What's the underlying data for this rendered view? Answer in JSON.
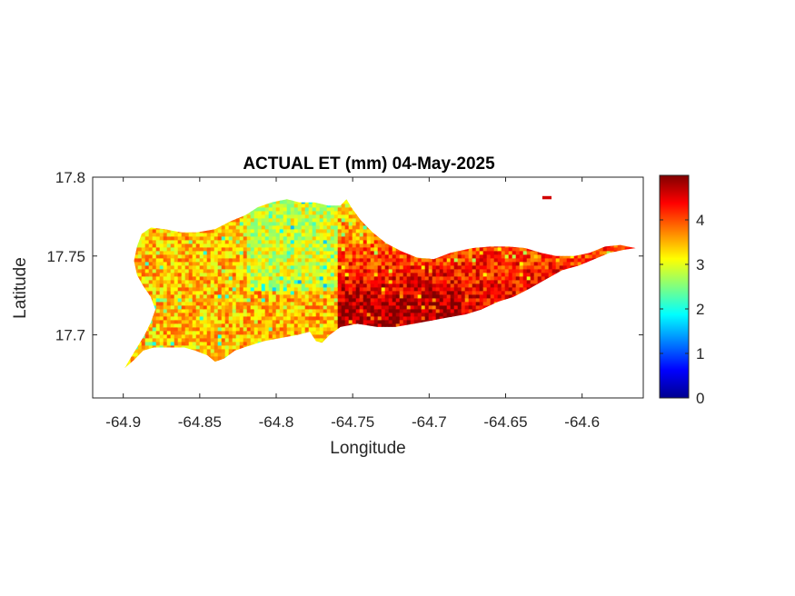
{
  "chart_data": {
    "type": "heatmap",
    "title": "ACTUAL ET (mm) 04-May-2025",
    "xlabel": "Longitude",
    "ylabel": "Latitude",
    "xlim": [
      -64.92,
      -64.56
    ],
    "ylim": [
      17.66,
      17.8
    ],
    "x_ticks": [
      -64.9,
      -64.85,
      -64.8,
      -64.75,
      -64.7,
      -64.65,
      -64.6
    ],
    "x_tick_labels": [
      "-64.9",
      "-64.85",
      "-64.8",
      "-64.75",
      "-64.7",
      "-64.65",
      "-64.6"
    ],
    "y_ticks": [
      17.7,
      17.75,
      17.8
    ],
    "y_tick_labels": [
      "17.7",
      "17.75",
      "17.8"
    ],
    "colorbar": {
      "colormap": "jet",
      "range": [
        0,
        5
      ],
      "ticks": [
        0,
        1,
        2,
        3,
        4
      ],
      "tick_labels": [
        "0",
        "1",
        "2",
        "3",
        "4"
      ]
    },
    "grid": false,
    "island_outline_lonlat": [
      [
        -64.899,
        17.679
      ],
      [
        -64.893,
        17.684
      ],
      [
        -64.887,
        17.69
      ],
      [
        -64.88,
        17.692
      ],
      [
        -64.87,
        17.692
      ],
      [
        -64.86,
        17.692
      ],
      [
        -64.853,
        17.69
      ],
      [
        -64.845,
        17.687
      ],
      [
        -64.84,
        17.683
      ],
      [
        -64.834,
        17.685
      ],
      [
        -64.827,
        17.69
      ],
      [
        -64.818,
        17.693
      ],
      [
        -64.808,
        17.696
      ],
      [
        -64.797,
        17.698
      ],
      [
        -64.786,
        17.7
      ],
      [
        -64.778,
        17.702
      ],
      [
        -64.774,
        17.696
      ],
      [
        -64.77,
        17.695
      ],
      [
        -64.765,
        17.7
      ],
      [
        -64.758,
        17.705
      ],
      [
        -64.747,
        17.707
      ],
      [
        -64.734,
        17.705
      ],
      [
        -64.722,
        17.705
      ],
      [
        -64.71,
        17.707
      ],
      [
        -64.699,
        17.709
      ],
      [
        -64.688,
        17.711
      ],
      [
        -64.676,
        17.713
      ],
      [
        -64.666,
        17.716
      ],
      [
        -64.655,
        17.721
      ],
      [
        -64.645,
        17.724
      ],
      [
        -64.635,
        17.729
      ],
      [
        -64.624,
        17.735
      ],
      [
        -64.613,
        17.741
      ],
      [
        -64.602,
        17.744
      ],
      [
        -64.592,
        17.748
      ],
      [
        -64.582,
        17.752
      ],
      [
        -64.572,
        17.754
      ],
      [
        -64.565,
        17.755
      ],
      [
        -64.575,
        17.757
      ],
      [
        -64.585,
        17.756
      ],
      [
        -64.595,
        17.752
      ],
      [
        -64.605,
        17.75
      ],
      [
        -64.617,
        17.75
      ],
      [
        -64.627,
        17.752
      ],
      [
        -64.637,
        17.755
      ],
      [
        -64.648,
        17.756
      ],
      [
        -64.66,
        17.756
      ],
      [
        -64.672,
        17.755
      ],
      [
        -64.686,
        17.752
      ],
      [
        -64.697,
        17.748
      ],
      [
        -64.708,
        17.749
      ],
      [
        -64.718,
        17.753
      ],
      [
        -64.728,
        17.758
      ],
      [
        -64.737,
        17.765
      ],
      [
        -64.745,
        17.773
      ],
      [
        -64.751,
        17.781
      ],
      [
        -64.754,
        17.786
      ],
      [
        -64.758,
        17.782
      ],
      [
        -64.766,
        17.782
      ],
      [
        -64.775,
        17.784
      ],
      [
        -64.785,
        17.784
      ],
      [
        -64.793,
        17.786
      ],
      [
        -64.803,
        17.784
      ],
      [
        -64.812,
        17.781
      ],
      [
        -64.82,
        17.776
      ],
      [
        -64.83,
        17.772
      ],
      [
        -64.84,
        17.767
      ],
      [
        -64.852,
        17.765
      ],
      [
        -64.862,
        17.765
      ],
      [
        -64.873,
        17.767
      ],
      [
        -64.882,
        17.768
      ],
      [
        -64.888,
        17.764
      ],
      [
        -64.891,
        17.756
      ],
      [
        -64.893,
        17.747
      ],
      [
        -64.891,
        17.738
      ],
      [
        -64.887,
        17.731
      ],
      [
        -64.882,
        17.724
      ],
      [
        -64.879,
        17.716
      ],
      [
        -64.882,
        17.708
      ],
      [
        -64.886,
        17.7
      ],
      [
        -64.891,
        17.692
      ],
      [
        -64.896,
        17.684
      ]
    ],
    "islet_outline_lonlat": [
      [
        -64.626,
        17.788
      ],
      [
        -64.62,
        17.788
      ],
      [
        -64.62,
        17.786
      ],
      [
        -64.626,
        17.786
      ]
    ],
    "value_field_description": [
      {
        "region": "west",
        "lon_range": [
          -64.9,
          -64.82
        ],
        "typical_value": 3.4
      },
      {
        "region": "central-north",
        "lon_range": [
          -64.85,
          -64.76
        ],
        "typical_value": 3.0
      },
      {
        "region": "central-south",
        "lon_range": [
          -64.76,
          -64.68
        ],
        "typical_value": 4.6
      },
      {
        "region": "east",
        "lon_range": [
          -64.68,
          -64.57
        ],
        "typical_value": 4.2
      }
    ]
  }
}
